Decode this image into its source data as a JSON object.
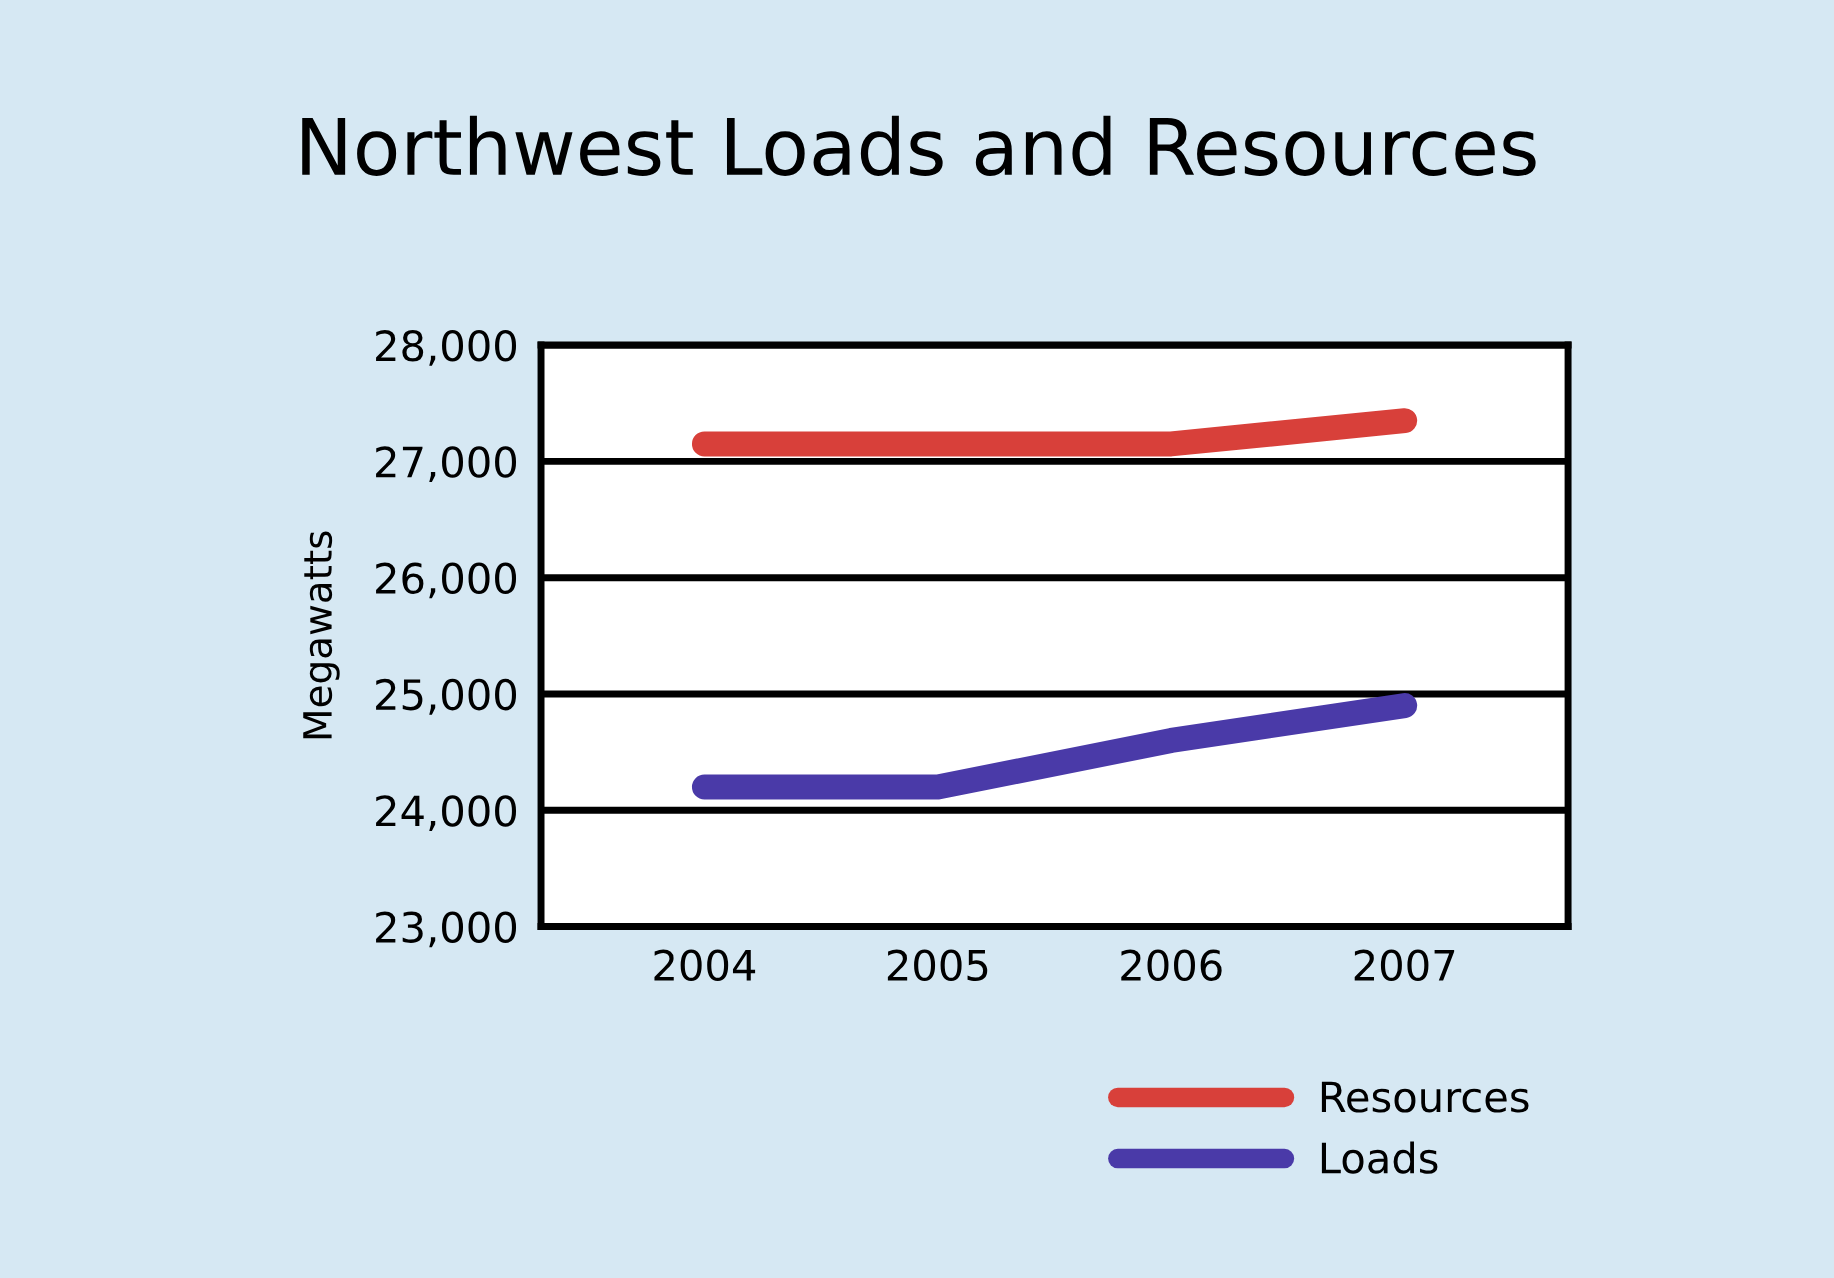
{
  "chart_data": {
    "type": "line",
    "title": "Northwest Loads and Resources",
    "ylabel": "Megawatts",
    "categories": [
      "2004",
      "2005",
      "2006",
      "2007"
    ],
    "series": [
      {
        "name": "Resources",
        "color": "#d8403a",
        "values": [
          27150,
          27150,
          27150,
          27350
        ]
      },
      {
        "name": "Loads",
        "color": "#4a3aa8",
        "values": [
          24200,
          24200,
          24600,
          24900
        ]
      }
    ],
    "ylim": [
      23000,
      28000
    ],
    "yticks": [
      {
        "value": 23000,
        "label": "23,000"
      },
      {
        "value": 24000,
        "label": "24,000"
      },
      {
        "value": 25000,
        "label": "25,000"
      },
      {
        "value": 26000,
        "label": "26,000"
      },
      {
        "value": 27000,
        "label": "27,000"
      },
      {
        "value": 28000,
        "label": "28,000"
      }
    ],
    "grid": "y",
    "legend": "bottom right",
    "line_style": "solid"
  }
}
